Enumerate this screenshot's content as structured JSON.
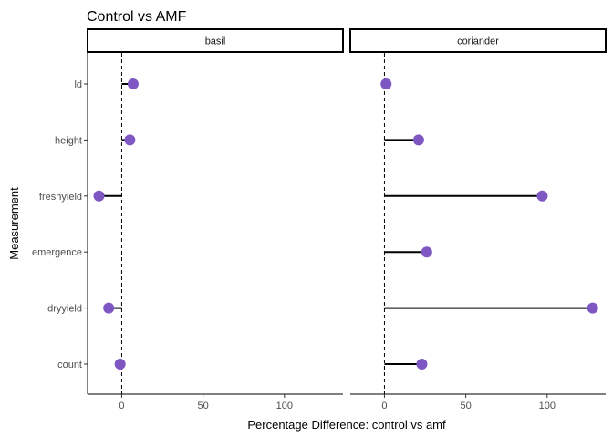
{
  "chart_data": {
    "type": "lollipop",
    "title": "Control vs AMF",
    "xlabel": "Percentage Difference: control vs amf",
    "ylabel": "Measurement",
    "categories": [
      "count",
      "dryyield",
      "emergence",
      "freshyield",
      "height",
      "ld"
    ],
    "x_ticks": [
      0,
      50,
      100
    ],
    "xlim": [
      -21,
      136
    ],
    "reference_line": 0,
    "point_color": "#7e57c2",
    "grid": false,
    "facets": [
      {
        "name": "basil",
        "points": [
          {
            "category": "ld",
            "value": 7
          },
          {
            "category": "height",
            "value": 5
          },
          {
            "category": "freshyield",
            "value": -14
          },
          {
            "category": "emergence",
            "value": null
          },
          {
            "category": "dryyield",
            "value": -8
          },
          {
            "category": "count",
            "value": -1
          }
        ]
      },
      {
        "name": "coriander",
        "points": [
          {
            "category": "ld",
            "value": 1
          },
          {
            "category": "height",
            "value": 21
          },
          {
            "category": "freshyield",
            "value": 97
          },
          {
            "category": "emergence",
            "value": 26
          },
          {
            "category": "dryyield",
            "value": 128
          },
          {
            "category": "count",
            "value": 23
          }
        ]
      }
    ]
  }
}
